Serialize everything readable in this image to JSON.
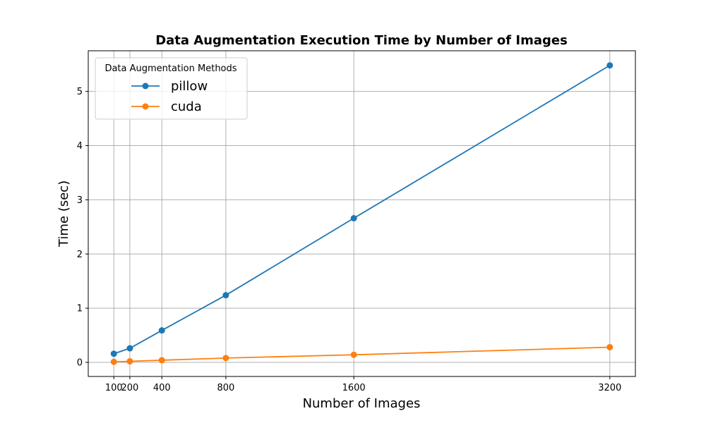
{
  "chart_data": {
    "type": "line",
    "title": "Data Augmentation Execution Time by Number of Images",
    "xlabel": "Number of Images",
    "ylabel": "Time (sec)",
    "x": [
      100,
      200,
      400,
      800,
      1600,
      3200
    ],
    "xticks": [
      "100",
      "200",
      "400",
      "800",
      "1600",
      "3200"
    ],
    "yticks": [
      "0",
      "1",
      "2",
      "3",
      "4",
      "5"
    ],
    "xlim": [
      -60,
      3360
    ],
    "ylim": [
      -0.26,
      5.75
    ],
    "grid": true,
    "legend": {
      "title": "Data Augmentation Methods",
      "placement": "top-left"
    },
    "series": [
      {
        "name": "pillow",
        "color": "#1f77b4",
        "values": [
          0.16,
          0.26,
          0.59,
          1.24,
          2.66,
          5.48
        ]
      },
      {
        "name": "cuda",
        "color": "#ff7f0e",
        "values": [
          0.01,
          0.02,
          0.04,
          0.08,
          0.14,
          0.28
        ]
      }
    ]
  }
}
